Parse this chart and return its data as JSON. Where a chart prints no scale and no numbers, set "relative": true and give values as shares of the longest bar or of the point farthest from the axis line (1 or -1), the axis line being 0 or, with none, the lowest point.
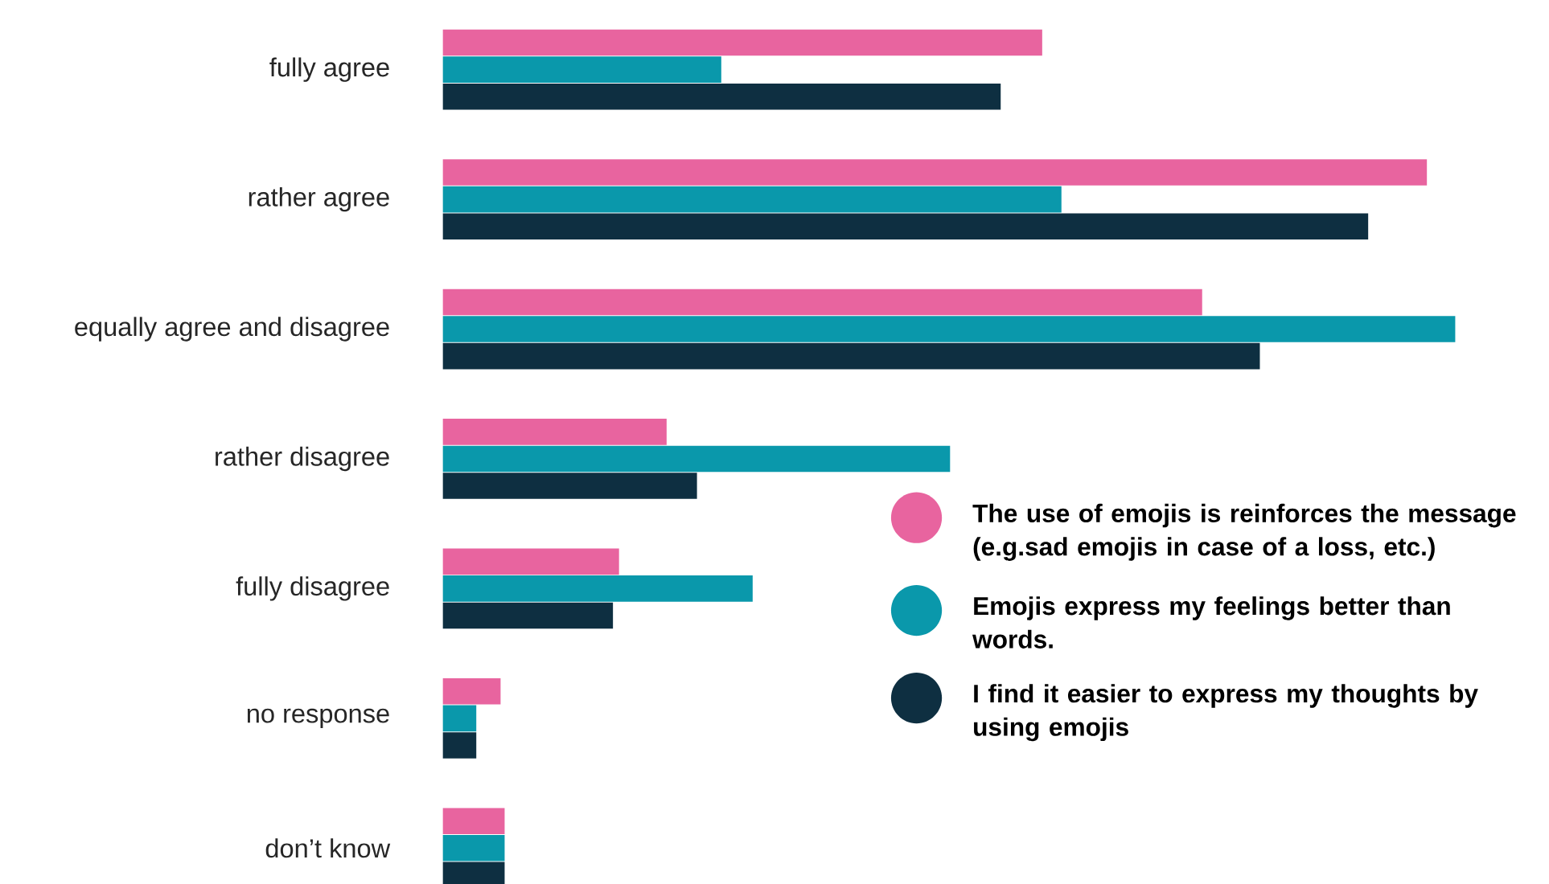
{
  "chart_data": {
    "type": "bar",
    "orientation": "horizontal",
    "relative": true,
    "legend": "bottom right",
    "categories": [
      "fully agree",
      "rather agree",
      "equally agree and disagree",
      "rather disagree",
      "fully disagree",
      "no response",
      "don’t know"
    ],
    "series": [
      {
        "name": "The use of emojis is reinforces the message (e.g.sad emojis in case of a loss, etc.)",
        "color": "#e8649f",
        "values": [
          0.592,
          0.972,
          0.75,
          0.221,
          0.174,
          0.057,
          0.061
        ]
      },
      {
        "name": "Emojis express my feelings better than words.",
        "color": "#0a98ab",
        "values": [
          0.275,
          0.611,
          1,
          0.501,
          0.306,
          0.033,
          0.061
        ]
      },
      {
        "name": "I find it easier to express my thoughts by using emojis",
        "color": "#0e2f41",
        "values": [
          0.551,
          0.914,
          0.807,
          0.251,
          0.168,
          0.033,
          0.061
        ]
      }
    ]
  }
}
